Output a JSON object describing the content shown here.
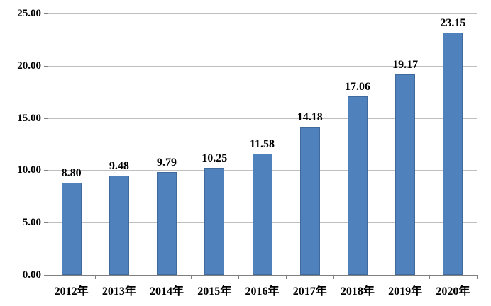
{
  "chart_data": {
    "type": "bar",
    "categories": [
      "2012年",
      "2013年",
      "2014年",
      "2015年",
      "2016年",
      "2017年",
      "2018年",
      "2019年",
      "2020年"
    ],
    "values": [
      8.8,
      9.48,
      9.79,
      10.25,
      11.58,
      14.18,
      17.06,
      19.17,
      23.15
    ],
    "value_labels": [
      "8.80",
      "9.48",
      "9.79",
      "10.25",
      "11.58",
      "14.18",
      "17.06",
      "19.17",
      "23.15"
    ],
    "title": "",
    "xlabel": "",
    "ylabel": "",
    "ylim": [
      0,
      25
    ],
    "ytick_step": 5,
    "ytick_labels": [
      "0.00",
      "5.00",
      "10.00",
      "15.00",
      "20.00",
      "25.00"
    ],
    "grid": "horizontal",
    "legend": "none",
    "bar_color": "#4F81BD",
    "bar_border_color": "#40699C",
    "gridline_color": "#BFBFBF",
    "axis_color": "#808080",
    "label_color": "#000000"
  }
}
